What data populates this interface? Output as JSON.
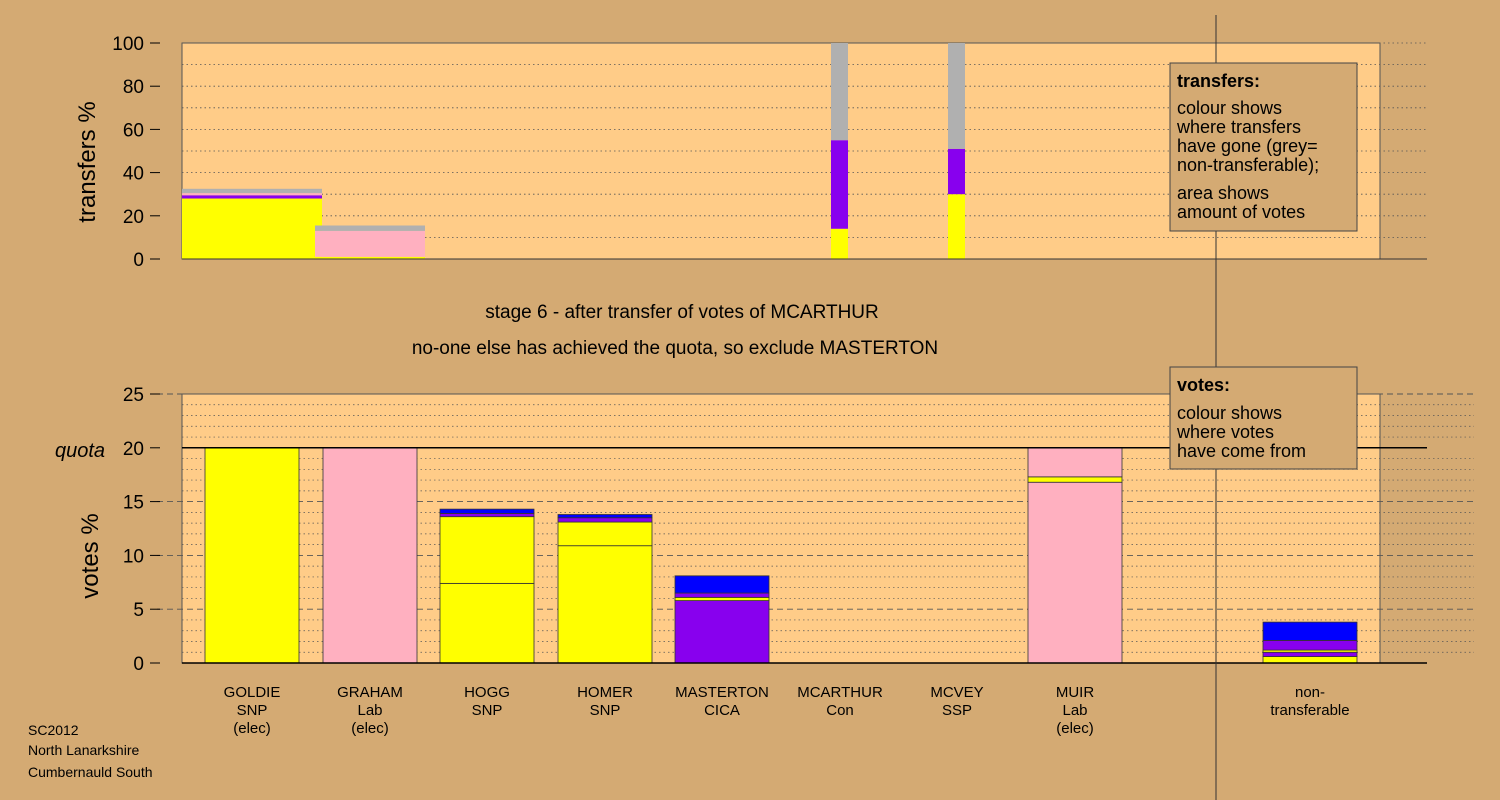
{
  "chart_data": [
    {
      "type": "bar",
      "stacked": true,
      "ylabel": "transfers %",
      "ylim": [
        0,
        100
      ],
      "y_ticks": [
        0,
        20,
        40,
        60,
        80,
        100
      ],
      "candidates": [
        "GOLDIE",
        "GRAHAM",
        "HOGG",
        "HOMER",
        "MASTERTON",
        "MCARTHUR",
        "MCVEY",
        "MUIR",
        "non-transferable"
      ],
      "source_columns": [
        {
          "label": "GOLDIE",
          "x_from": 0,
          "x_to": 1,
          "segments": [
            {
              "colour": "#ffff00",
              "value": 28
            },
            {
              "colour": "#8800ee",
              "value": 1.5
            },
            {
              "colour": "#ffb0c0",
              "value": 1
            },
            {
              "colour": "#b0b0b0",
              "value": 2
            }
          ]
        },
        {
          "label": "GRAHAM",
          "x_from": 1,
          "x_to": 2,
          "segments": [
            {
              "colour": "#ffff00",
              "value": 1
            },
            {
              "colour": "#ffb0c0",
              "value": 12
            },
            {
              "colour": "#b0b0b0",
              "value": 2.5
            }
          ]
        },
        {
          "label": "MCARTHUR",
          "x_from": 5,
          "x_to": 5.1,
          "segments": [
            {
              "colour": "#ffff00",
              "value": 14
            },
            {
              "colour": "#8800ee",
              "value": 41
            },
            {
              "colour": "#b0b0b0",
              "value": 45
            }
          ]
        },
        {
          "label": "MCVEY",
          "x_from": 6,
          "x_to": 6.1,
          "segments": [
            {
              "colour": "#ffff00",
              "value": 30
            },
            {
              "colour": "#8800ee",
              "value": 21
            },
            {
              "colour": "#b0b0b0",
              "value": 49
            }
          ]
        }
      ],
      "legend": {
        "title": "transfers:",
        "lines_a": [
          "colour shows",
          "where transfers",
          "have gone (grey=",
          "non-transferable);"
        ],
        "lines_b": [
          "area shows",
          "amount of votes"
        ]
      }
    },
    {
      "type": "bar",
      "stacked": true,
      "ylabel": "votes %",
      "ylim": [
        0,
        25
      ],
      "y_ticks": [
        0,
        5,
        10,
        15,
        20,
        25
      ],
      "quota": 20,
      "quota_label": "quota",
      "categories": [
        [
          "GOLDIE",
          "SNP",
          "(elec)"
        ],
        [
          "GRAHAM",
          "Lab",
          "(elec)"
        ],
        [
          "HOGG",
          "SNP"
        ],
        [
          "HOMER",
          "SNP"
        ],
        [
          "MASTERTON",
          "CICA"
        ],
        [
          "MCARTHUR",
          "Con"
        ],
        [
          "MCVEY",
          "SSP"
        ],
        [
          "MUIR",
          "Lab",
          "(elec)"
        ],
        [
          "non-",
          "transferable"
        ]
      ],
      "bars": [
        [
          {
            "colour": "#ffff00",
            "value": 20
          }
        ],
        [
          {
            "colour": "#ffb0c0",
            "value": 20
          }
        ],
        [
          {
            "colour": "#ffff00",
            "value": 7.4
          },
          {
            "colour": "#ffff00",
            "value": 6.2
          },
          {
            "colour": "#8800ee",
            "value": 0.3
          },
          {
            "colour": "#0000ff",
            "value": 0.4
          }
        ],
        [
          {
            "colour": "#ffff00",
            "value": 10.9
          },
          {
            "colour": "#ffff00",
            "value": 2.2
          },
          {
            "colour": "#8800ee",
            "value": 0.4
          },
          {
            "colour": "#0000ff",
            "value": 0.3
          }
        ],
        [
          {
            "colour": "#8800ee",
            "value": 5.8
          },
          {
            "colour": "#ffff00",
            "value": 0.3
          },
          {
            "colour": "#8800ee",
            "value": 0.4
          },
          {
            "colour": "#0000ff",
            "value": 1.6
          }
        ],
        [],
        [],
        [
          {
            "colour": "#ffb0c0",
            "value": 16.8
          },
          {
            "colour": "#ffff00",
            "value": 0.5
          },
          {
            "colour": "#ffb0c0",
            "value": 2.7
          }
        ],
        [
          {
            "colour": "#ffff00",
            "value": 0.6
          },
          {
            "colour": "#8800ee",
            "value": 0.4
          },
          {
            "colour": "#ffff00",
            "value": 0.2
          },
          {
            "colour": "#8800ee",
            "value": 0.9
          },
          {
            "colour": "#0000ff",
            "value": 1.7
          }
        ]
      ],
      "legend": {
        "title": "votes:",
        "lines": [
          "colour shows",
          "where votes",
          "have come from"
        ]
      }
    }
  ],
  "stage_title": "stage 6 - after transfer of votes of MCARTHUR",
  "stage_subtitle": "no-one else has achieved the quota, so exclude MASTERTON",
  "footer": [
    "SC2012",
    "North Lanarkshire",
    "Cumbernauld South"
  ],
  "colors": {
    "background": "#d4aa73",
    "plot_area": "#ffcc88",
    "yellow": "#ffff00",
    "pink": "#ffb0c0",
    "purple": "#8800ee",
    "blue": "#0000ff",
    "grey": "#b0b0b0"
  }
}
